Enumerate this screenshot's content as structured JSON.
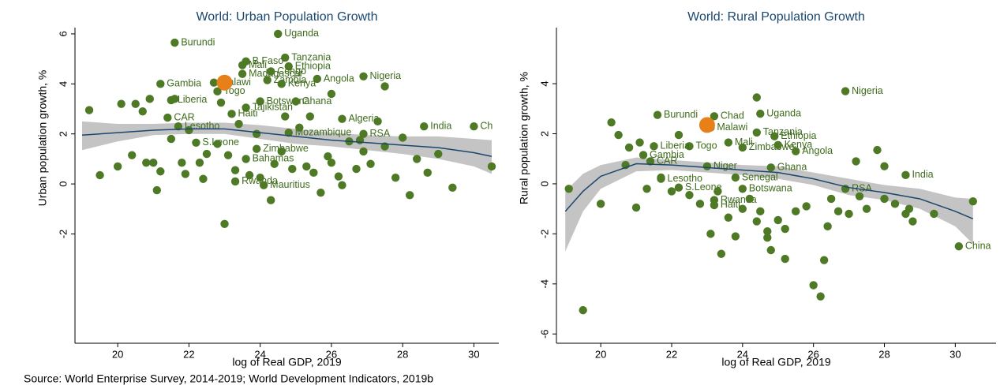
{
  "chart_data": [
    {
      "type": "scatter",
      "title": "World: Urban Population Growth",
      "xlabel": "log of Real GDP, 2019",
      "ylabel": "Urban population growth, %",
      "xlim": [
        18.8,
        30.7
      ],
      "ylim": [
        -6.37,
        6.25
      ],
      "xticks": [
        20,
        22,
        24,
        26,
        28,
        30
      ],
      "yticks": [
        -2,
        0,
        2,
        4,
        6
      ],
      "point_color": "#4e7a26",
      "highlight": {
        "x": 23.0,
        "y": 4.05,
        "color": "#e8801a"
      },
      "fit": {
        "color": "#1a476f",
        "band_color": "#c4c4c4",
        "x": [
          19,
          20,
          21,
          22,
          23,
          24,
          25,
          26,
          27,
          28,
          29,
          30,
          30.5
        ],
        "values": [
          1.95,
          2.05,
          2.15,
          2.2,
          2.2,
          2.05,
          1.9,
          1.75,
          1.65,
          1.55,
          1.45,
          1.25,
          1.1
        ],
        "upper": [
          2.5,
          2.4,
          2.4,
          2.45,
          2.45,
          2.35,
          2.2,
          2.05,
          1.95,
          1.9,
          1.9,
          1.8,
          1.75
        ],
        "lower": [
          1.35,
          1.7,
          1.95,
          2.0,
          2.0,
          1.8,
          1.6,
          1.5,
          1.35,
          1.2,
          1.0,
          0.7,
          0.4
        ]
      },
      "points": [
        {
          "x": 24.5,
          "y": 6.0,
          "label": "Uganda"
        },
        {
          "x": 21.6,
          "y": 5.65,
          "label": "Burundi"
        },
        {
          "x": 24.7,
          "y": 5.05,
          "label": "Tanzania"
        },
        {
          "x": 23.6,
          "y": 4.9,
          "label": "B.Faso"
        },
        {
          "x": 23.5,
          "y": 4.75,
          "label": "Mali"
        },
        {
          "x": 24.8,
          "y": 4.7,
          "label": "Ethiopia"
        },
        {
          "x": 23.5,
          "y": 4.4,
          "label": "Madagascar"
        },
        {
          "x": 24.3,
          "y": 4.5,
          "label": "Congo"
        },
        {
          "x": 24.2,
          "y": 4.15,
          "label": "Zambia"
        },
        {
          "x": 25.6,
          "y": 4.2,
          "label": "Angola"
        },
        {
          "x": 26.9,
          "y": 4.3,
          "label": "Nigeria"
        },
        {
          "x": 24.6,
          "y": 4.0,
          "label": "Kenya"
        },
        {
          "x": 21.2,
          "y": 4.0,
          "label": "Gambia"
        },
        {
          "x": 22.7,
          "y": 4.05,
          "label": "Malawi"
        },
        {
          "x": 22.8,
          "y": 3.7,
          "label": "Togo"
        },
        {
          "x": 21.5,
          "y": 3.35,
          "label": "Liberia"
        },
        {
          "x": 24.0,
          "y": 3.3,
          "label": "Botswana"
        },
        {
          "x": 25.0,
          "y": 3.3,
          "label": "Ghana"
        },
        {
          "x": 23.6,
          "y": 3.05,
          "label": "Tajikistan"
        },
        {
          "x": 23.2,
          "y": 2.8,
          "label": "Haiti"
        },
        {
          "x": 21.4,
          "y": 2.65,
          "label": "CAR"
        },
        {
          "x": 26.3,
          "y": 2.6,
          "label": "Algeria"
        },
        {
          "x": 21.7,
          "y": 2.3,
          "label": "Lesotho"
        },
        {
          "x": 28.6,
          "y": 2.3,
          "label": "India"
        },
        {
          "x": 30.0,
          "y": 2.3,
          "label": "Ch"
        },
        {
          "x": 24.8,
          "y": 2.05,
          "label": "Mozambique"
        },
        {
          "x": 26.9,
          "y": 2.0,
          "label": "RSA"
        },
        {
          "x": 22.2,
          "y": 1.65,
          "label": "S.Leone"
        },
        {
          "x": 23.9,
          "y": 1.4,
          "label": "Zimbabwe"
        },
        {
          "x": 23.6,
          "y": 1.0,
          "label": "Bahamas"
        },
        {
          "x": 23.3,
          "y": 0.1,
          "label": "Rwanda"
        },
        {
          "x": 24.1,
          "y": -0.05,
          "label": "Mauritius"
        },
        {
          "x": 19.2,
          "y": 2.95
        },
        {
          "x": 19.5,
          "y": 0.35
        },
        {
          "x": 20.0,
          "y": 0.7
        },
        {
          "x": 20.4,
          "y": 1.15
        },
        {
          "x": 20.5,
          "y": 3.2
        },
        {
          "x": 20.7,
          "y": 2.9
        },
        {
          "x": 20.8,
          "y": 0.85
        },
        {
          "x": 20.9,
          "y": 3.4
        },
        {
          "x": 21.0,
          "y": 0.85
        },
        {
          "x": 21.1,
          "y": -0.25
        },
        {
          "x": 21.2,
          "y": 0.5
        },
        {
          "x": 21.5,
          "y": 1.8
        },
        {
          "x": 21.8,
          "y": 0.85
        },
        {
          "x": 21.9,
          "y": 0.4
        },
        {
          "x": 22.0,
          "y": 2.15
        },
        {
          "x": 22.3,
          "y": 0.85
        },
        {
          "x": 22.4,
          "y": 0.2
        },
        {
          "x": 22.5,
          "y": 1.2
        },
        {
          "x": 22.8,
          "y": 1.6
        },
        {
          "x": 23.1,
          "y": 1.15
        },
        {
          "x": 23.3,
          "y": 0.55
        },
        {
          "x": 23.4,
          "y": 2.4
        },
        {
          "x": 23.7,
          "y": 0.35
        },
        {
          "x": 23.9,
          "y": 2.0
        },
        {
          "x": 24.0,
          "y": 0.25
        },
        {
          "x": 24.3,
          "y": -0.65
        },
        {
          "x": 24.4,
          "y": 0.8
        },
        {
          "x": 24.6,
          "y": 1.3
        },
        {
          "x": 24.9,
          "y": 0.6
        },
        {
          "x": 25.1,
          "y": 2.25
        },
        {
          "x": 25.3,
          "y": 0.7
        },
        {
          "x": 25.5,
          "y": 0.45
        },
        {
          "x": 25.7,
          "y": -0.35
        },
        {
          "x": 25.9,
          "y": 1.1
        },
        {
          "x": 26.0,
          "y": 0.85
        },
        {
          "x": 26.2,
          "y": 0.3
        },
        {
          "x": 26.3,
          "y": -0.05
        },
        {
          "x": 26.5,
          "y": 1.7
        },
        {
          "x": 26.7,
          "y": 0.6
        },
        {
          "x": 26.9,
          "y": 1.3
        },
        {
          "x": 27.1,
          "y": 0.8
        },
        {
          "x": 27.3,
          "y": 2.5
        },
        {
          "x": 27.5,
          "y": 1.5
        },
        {
          "x": 27.8,
          "y": 0.25
        },
        {
          "x": 28.0,
          "y": 1.85
        },
        {
          "x": 28.2,
          "y": -0.45
        },
        {
          "x": 28.4,
          "y": 1.0
        },
        {
          "x": 28.7,
          "y": 0.45
        },
        {
          "x": 29.0,
          "y": 1.2
        },
        {
          "x": 29.4,
          "y": -0.15
        },
        {
          "x": 30.5,
          "y": 0.7
        },
        {
          "x": 23.0,
          "y": -1.6
        },
        {
          "x": 21.6,
          "y": 3.4
        },
        {
          "x": 20.1,
          "y": 3.2
        },
        {
          "x": 22.9,
          "y": 3.25
        },
        {
          "x": 24.7,
          "y": 2.7
        },
        {
          "x": 25.4,
          "y": 2.7
        },
        {
          "x": 26.0,
          "y": 3.6
        },
        {
          "x": 27.5,
          "y": 3.9
        },
        {
          "x": 26.8,
          "y": 1.75
        }
      ]
    },
    {
      "type": "scatter",
      "title": "World: Rural Population Growth",
      "xlabel": "log of Real GDP, 2019",
      "ylabel": "Rural population growth, %",
      "xlim": [
        18.75,
        31.15
      ],
      "ylim": [
        -6.37,
        6.24
      ],
      "xticks": [
        20,
        22,
        24,
        26,
        28,
        30
      ],
      "yticks": [
        -6,
        -4,
        -2,
        0,
        2,
        4
      ],
      "point_color": "#4e7a26",
      "highlight": {
        "x": 23.0,
        "y": 2.35,
        "color": "#e8801a"
      },
      "fit": {
        "color": "#1a476f",
        "band_color": "#c4c4c4",
        "x": [
          19,
          19.5,
          20,
          21,
          22,
          23,
          24,
          25,
          26,
          27,
          28,
          29,
          30,
          30.5
        ],
        "values": [
          -1.1,
          -0.3,
          0.3,
          0.8,
          0.75,
          0.65,
          0.55,
          0.45,
          0.2,
          -0.15,
          -0.35,
          -0.6,
          -1.1,
          -1.4
        ],
        "upper": [
          -0.3,
          0.4,
          0.75,
          1.05,
          0.95,
          0.85,
          0.75,
          0.7,
          0.45,
          0.2,
          -0.05,
          -0.2,
          -0.55,
          -0.6
        ],
        "lower": [
          -2.7,
          -1.1,
          -0.2,
          0.5,
          0.55,
          0.45,
          0.35,
          0.2,
          -0.05,
          -0.45,
          -0.65,
          -1.0,
          -1.7,
          -2.4
        ]
      },
      "points": [
        {
          "x": 26.9,
          "y": 3.7,
          "label": "Nigeria"
        },
        {
          "x": 24.5,
          "y": 2.8,
          "label": "Uganda"
        },
        {
          "x": 21.6,
          "y": 2.75,
          "label": "Burundi"
        },
        {
          "x": 23.2,
          "y": 2.7,
          "label": "Chad"
        },
        {
          "x": 23.1,
          "y": 2.25,
          "label": "Malawi"
        },
        {
          "x": 24.4,
          "y": 2.05,
          "label": "Tanzania"
        },
        {
          "x": 24.9,
          "y": 1.9,
          "label": "Ethiopia"
        },
        {
          "x": 23.6,
          "y": 1.65,
          "label": "Mali"
        },
        {
          "x": 22.5,
          "y": 1.5,
          "label": "Togo"
        },
        {
          "x": 21.5,
          "y": 1.5,
          "label": "Liberia"
        },
        {
          "x": 24.0,
          "y": 1.45,
          "label": "Zimbabwe"
        },
        {
          "x": 25.0,
          "y": 1.55,
          "label": "Kenya"
        },
        {
          "x": 25.5,
          "y": 1.3,
          "label": "Angola"
        },
        {
          "x": 21.2,
          "y": 1.15,
          "label": "Gambia"
        },
        {
          "x": 21.4,
          "y": 0.9,
          "label": "CAR"
        },
        {
          "x": 23.0,
          "y": 0.7,
          "label": "Niger"
        },
        {
          "x": 24.8,
          "y": 0.65,
          "label": "Ghana"
        },
        {
          "x": 23.8,
          "y": 0.25,
          "label": "Senegal"
        },
        {
          "x": 21.7,
          "y": 0.2,
          "label": "Lesotho"
        },
        {
          "x": 22.2,
          "y": -0.15,
          "label": "S.Leone"
        },
        {
          "x": 24.0,
          "y": -0.2,
          "label": "Botswana"
        },
        {
          "x": 26.9,
          "y": -0.2,
          "label": "RSA"
        },
        {
          "x": 28.6,
          "y": 0.35,
          "label": "India"
        },
        {
          "x": 23.2,
          "y": -0.65,
          "label": "Rwanda"
        },
        {
          "x": 23.2,
          "y": -0.85,
          "label": "Haiti"
        },
        {
          "x": 30.1,
          "y": -2.5,
          "label": "China"
        },
        {
          "x": 19.1,
          "y": -0.2
        },
        {
          "x": 19.5,
          "y": -5.05
        },
        {
          "x": 20.0,
          "y": -0.8
        },
        {
          "x": 20.3,
          "y": 2.45
        },
        {
          "x": 20.5,
          "y": 1.95
        },
        {
          "x": 20.7,
          "y": 0.75
        },
        {
          "x": 20.8,
          "y": 1.45
        },
        {
          "x": 21.0,
          "y": -0.95
        },
        {
          "x": 21.1,
          "y": 1.65
        },
        {
          "x": 21.3,
          "y": -0.2
        },
        {
          "x": 21.7,
          "y": 0.25
        },
        {
          "x": 22.0,
          "y": -0.3
        },
        {
          "x": 22.2,
          "y": 1.95
        },
        {
          "x": 22.5,
          "y": -0.45
        },
        {
          "x": 22.8,
          "y": -0.8
        },
        {
          "x": 23.1,
          "y": -2.0
        },
        {
          "x": 23.4,
          "y": -2.8
        },
        {
          "x": 23.6,
          "y": -1.35
        },
        {
          "x": 23.8,
          "y": -2.1
        },
        {
          "x": 24.0,
          "y": -1.0
        },
        {
          "x": 24.2,
          "y": -0.6
        },
        {
          "x": 24.4,
          "y": -1.5
        },
        {
          "x": 24.5,
          "y": -1.1
        },
        {
          "x": 24.7,
          "y": -2.15
        },
        {
          "x": 24.8,
          "y": -2.65
        },
        {
          "x": 25.0,
          "y": -1.45
        },
        {
          "x": 25.2,
          "y": -3.0
        },
        {
          "x": 25.5,
          "y": -1.1
        },
        {
          "x": 25.8,
          "y": -0.9
        },
        {
          "x": 26.0,
          "y": -4.05
        },
        {
          "x": 26.2,
          "y": -4.5
        },
        {
          "x": 26.3,
          "y": -3.05
        },
        {
          "x": 26.5,
          "y": -0.6
        },
        {
          "x": 26.7,
          "y": -1.1
        },
        {
          "x": 27.0,
          "y": -1.2
        },
        {
          "x": 27.2,
          "y": 0.9
        },
        {
          "x": 27.5,
          "y": -1.0
        },
        {
          "x": 27.8,
          "y": 1.35
        },
        {
          "x": 28.0,
          "y": -0.6
        },
        {
          "x": 28.3,
          "y": -0.8
        },
        {
          "x": 28.6,
          "y": -1.2
        },
        {
          "x": 28.7,
          "y": -1.0
        },
        {
          "x": 29.4,
          "y": -1.2
        },
        {
          "x": 30.5,
          "y": -0.7
        },
        {
          "x": 24.4,
          "y": 3.45
        },
        {
          "x": 25.2,
          "y": -1.8
        },
        {
          "x": 26.4,
          "y": -1.7
        },
        {
          "x": 23.3,
          "y": -0.3
        },
        {
          "x": 27.3,
          "y": -0.5
        },
        {
          "x": 28.0,
          "y": 0.7
        },
        {
          "x": 28.8,
          "y": -1.5
        },
        {
          "x": 24.7,
          "y": -1.9
        }
      ]
    }
  ],
  "source": "Source: World Enterprise Survey, 2014-2019; World Development Indicators, 2019b"
}
